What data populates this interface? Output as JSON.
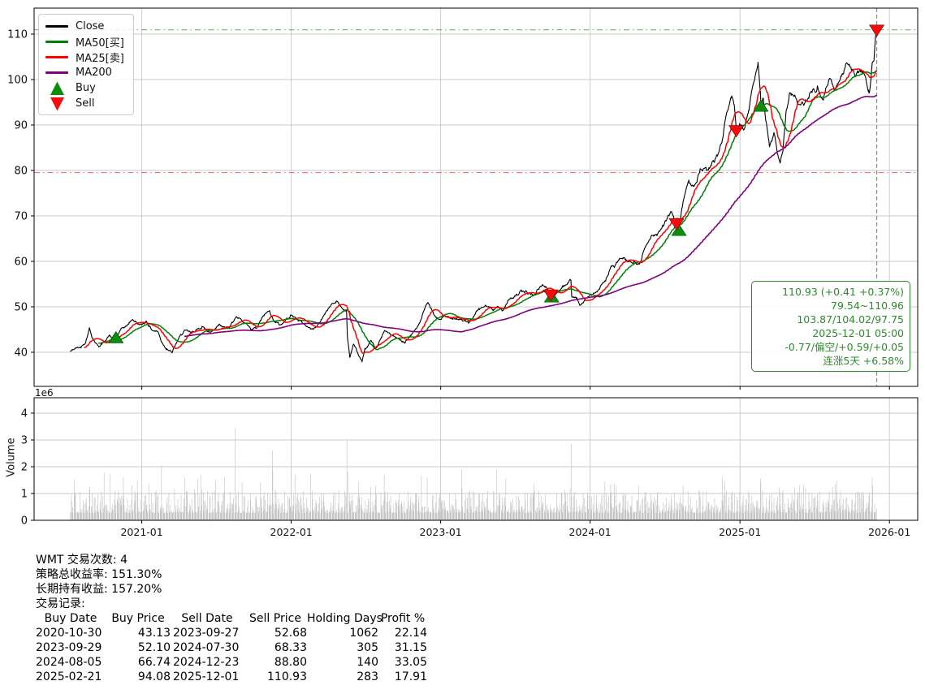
{
  "chart_data": {
    "type": "line",
    "symbol": "WMT",
    "title": "",
    "x_ticks": [
      "2021-01",
      "2022-01",
      "2023-01",
      "2024-01",
      "2025-01",
      "2026-01"
    ],
    "x_range": [
      "2020-04-13",
      "2026-03-11"
    ],
    "price_axis": {
      "ticks": [
        40,
        50,
        60,
        70,
        80,
        90,
        100,
        110
      ],
      "ylim": [
        32.5,
        115.714
      ],
      "grid": true
    },
    "volume_axis": {
      "ticks": [
        0,
        1,
        2,
        3,
        4
      ],
      "ylim_millions": [
        0,
        4.576
      ],
      "offset_label": "1e6",
      "ylabel": "Volume",
      "grid": true
    },
    "series": [
      {
        "name": "Close",
        "color": "#000000",
        "width": 1.1,
        "keypoints": [
          [
            "2020-07-10",
            40.2
          ],
          [
            "2020-07-24",
            40.9
          ],
          [
            "2020-08-06",
            41.1
          ],
          [
            "2020-08-18",
            42.6
          ],
          [
            "2020-08-26",
            45.4
          ],
          [
            "2020-09-03",
            43.1
          ],
          [
            "2020-09-11",
            42.0
          ],
          [
            "2020-09-21",
            41.3
          ],
          [
            "2020-10-02",
            42.4
          ],
          [
            "2020-10-14",
            43.8
          ],
          [
            "2020-10-23",
            42.9
          ],
          [
            "2020-10-30",
            43.13
          ],
          [
            "2020-11-10",
            44.9
          ],
          [
            "2020-11-24",
            45.8
          ],
          [
            "2020-12-09",
            47.2
          ],
          [
            "2020-12-21",
            46.4
          ],
          [
            "2020-12-31",
            46.1
          ],
          [
            "2021-01-12",
            46.9
          ],
          [
            "2021-01-26",
            44.9
          ],
          [
            "2021-02-09",
            44.6
          ],
          [
            "2021-02-19",
            42.2
          ],
          [
            "2021-03-03",
            40.8
          ],
          [
            "2021-03-16",
            39.9
          ],
          [
            "2021-03-31",
            42.9
          ],
          [
            "2021-04-15",
            44.8
          ],
          [
            "2021-04-30",
            44.3
          ],
          [
            "2021-05-17",
            45.1
          ],
          [
            "2021-05-28",
            45.7
          ],
          [
            "2021-06-11",
            44.5
          ],
          [
            "2021-06-25",
            44.9
          ],
          [
            "2021-07-09",
            46.2
          ],
          [
            "2021-07-23",
            45.3
          ],
          [
            "2021-08-06",
            46.0
          ],
          [
            "2021-08-18",
            47.6
          ],
          [
            "2021-09-03",
            46.8
          ],
          [
            "2021-09-24",
            45.0
          ],
          [
            "2021-10-08",
            45.3
          ],
          [
            "2021-10-26",
            48.0
          ],
          [
            "2021-11-09",
            49.2
          ],
          [
            "2021-11-17",
            47.4
          ],
          [
            "2021-12-03",
            46.0
          ],
          [
            "2021-12-16",
            46.7
          ],
          [
            "2021-12-30",
            48.2
          ],
          [
            "2022-01-14",
            47.4
          ],
          [
            "2022-02-01",
            46.3
          ],
          [
            "2022-02-18",
            45.1
          ],
          [
            "2022-03-04",
            45.6
          ],
          [
            "2022-03-25",
            48.6
          ],
          [
            "2022-04-08",
            50.4
          ],
          [
            "2022-04-21",
            51.3
          ],
          [
            "2022-05-06",
            49.6
          ],
          [
            "2022-05-16",
            49.2
          ],
          [
            "2022-05-18",
            43.6
          ],
          [
            "2022-05-24",
            38.9
          ],
          [
            "2022-06-02",
            41.8
          ],
          [
            "2022-06-13",
            39.7
          ],
          [
            "2022-06-23",
            37.9
          ],
          [
            "2022-07-01",
            40.7
          ],
          [
            "2022-07-15",
            42.6
          ],
          [
            "2022-07-26",
            40.9
          ],
          [
            "2022-08-08",
            43.0
          ],
          [
            "2022-08-17",
            44.8
          ],
          [
            "2022-09-06",
            43.6
          ],
          [
            "2022-09-23",
            42.7
          ],
          [
            "2022-10-07",
            42.4
          ],
          [
            "2022-10-25",
            44.3
          ],
          [
            "2022-11-10",
            46.3
          ],
          [
            "2022-11-30",
            50.9
          ],
          [
            "2022-12-15",
            48.3
          ],
          [
            "2022-12-28",
            47.2
          ],
          [
            "2023-01-12",
            47.9
          ],
          [
            "2023-01-31",
            47.6
          ],
          [
            "2023-02-21",
            47.3
          ],
          [
            "2023-03-10",
            46.4
          ],
          [
            "2023-03-31",
            49.1
          ],
          [
            "2023-04-21",
            50.3
          ],
          [
            "2023-05-10",
            49.4
          ],
          [
            "2023-05-19",
            50.1
          ],
          [
            "2023-06-02",
            49.2
          ],
          [
            "2023-06-16",
            51.6
          ],
          [
            "2023-06-30",
            52.4
          ],
          [
            "2023-07-18",
            53.3
          ],
          [
            "2023-07-31",
            53.2
          ],
          [
            "2023-08-16",
            52.5
          ],
          [
            "2023-08-31",
            54.3
          ],
          [
            "2023-09-14",
            54.5
          ],
          [
            "2023-09-21",
            53.6
          ],
          [
            "2023-09-27",
            52.68
          ],
          [
            "2023-09-29",
            52.1
          ],
          [
            "2023-10-13",
            53.2
          ],
          [
            "2023-10-27",
            54.4
          ],
          [
            "2023-11-08",
            55.2
          ],
          [
            "2023-11-15",
            55.9
          ],
          [
            "2023-11-17",
            52.2
          ],
          [
            "2023-11-30",
            51.8
          ],
          [
            "2023-12-08",
            50.4
          ],
          [
            "2023-12-20",
            51.9
          ],
          [
            "2024-01-05",
            52.5
          ],
          [
            "2024-01-24",
            53.9
          ],
          [
            "2024-02-09",
            56.2
          ],
          [
            "2024-02-20",
            58.7
          ],
          [
            "2024-03-01",
            58.9
          ],
          [
            "2024-03-14",
            60.6
          ],
          [
            "2024-03-28",
            60.2
          ],
          [
            "2024-04-12",
            59.7
          ],
          [
            "2024-04-30",
            59.4
          ],
          [
            "2024-05-15",
            63.2
          ],
          [
            "2024-05-31",
            65.7
          ],
          [
            "2024-06-14",
            66.1
          ],
          [
            "2024-06-28",
            67.7
          ],
          [
            "2024-07-08",
            69.7
          ],
          [
            "2024-07-16",
            71.0
          ],
          [
            "2024-07-24",
            69.0
          ],
          [
            "2024-07-30",
            68.33
          ],
          [
            "2024-08-05",
            66.74
          ],
          [
            "2024-08-15",
            73.1
          ],
          [
            "2024-08-30",
            77.2
          ],
          [
            "2024-09-12",
            76.8
          ],
          [
            "2024-09-27",
            80.3
          ],
          [
            "2024-10-11",
            80.0
          ],
          [
            "2024-10-31",
            81.9
          ],
          [
            "2024-11-12",
            84.7
          ],
          [
            "2024-11-19",
            86.8
          ],
          [
            "2024-11-29",
            92.6
          ],
          [
            "2024-12-12",
            96.4
          ],
          [
            "2024-12-18",
            94.5
          ],
          [
            "2024-12-23",
            88.8
          ],
          [
            "2024-12-31",
            90.3
          ],
          [
            "2025-01-02",
            90.0
          ],
          [
            "2025-01-13",
            89.4
          ],
          [
            "2025-01-23",
            93.2
          ],
          [
            "2025-01-31",
            98.1
          ],
          [
            "2025-02-07",
            100.7
          ],
          [
            "2025-02-14",
            103.8
          ],
          [
            "2025-02-20",
            97.2
          ],
          [
            "2025-02-21",
            94.08
          ],
          [
            "2025-02-27",
            95.9
          ],
          [
            "2025-03-07",
            90.1
          ],
          [
            "2025-03-14",
            85.2
          ],
          [
            "2025-03-26",
            87.9
          ],
          [
            "2025-04-04",
            83.2
          ],
          [
            "2025-04-09",
            81.6
          ],
          [
            "2025-04-16",
            84.3
          ],
          [
            "2025-04-24",
            93.3
          ],
          [
            "2025-05-02",
            97.1
          ],
          [
            "2025-05-16",
            96.2
          ],
          [
            "2025-05-29",
            94.4
          ],
          [
            "2025-06-10",
            95.6
          ],
          [
            "2025-06-24",
            97.4
          ],
          [
            "2025-07-09",
            98.6
          ],
          [
            "2025-07-22",
            95.6
          ],
          [
            "2025-08-07",
            100.1
          ],
          [
            "2025-08-21",
            97.6
          ],
          [
            "2025-09-05",
            100.6
          ],
          [
            "2025-09-16",
            103.4
          ],
          [
            "2025-09-30",
            102.1
          ],
          [
            "2025-10-10",
            100.7
          ],
          [
            "2025-10-24",
            102.2
          ],
          [
            "2025-11-04",
            100.4
          ],
          [
            "2025-11-13",
            97.1
          ],
          [
            "2025-11-20",
            103.6
          ],
          [
            "2025-11-24",
            104.1
          ],
          [
            "2025-11-26",
            107.0
          ],
          [
            "2025-11-28",
            109.5
          ],
          [
            "2025-12-01",
            110.93
          ]
        ]
      },
      {
        "name": "MA50[买]",
        "color": "#008000",
        "width": 1.5,
        "derived": "moving_average",
        "window": 50
      },
      {
        "name": "MA25[卖]",
        "color": "#ff0000",
        "width": 1.5,
        "derived": "moving_average",
        "window": 25
      },
      {
        "name": "MA200",
        "color": "#800080",
        "width": 1.6,
        "derived": "moving_average",
        "window": 200
      }
    ],
    "markers": {
      "buy": {
        "color": "#0a8f0a",
        "edge": "#064006",
        "points": [
          [
            "2020-10-30",
            43.13
          ],
          [
            "2023-09-29",
            52.1
          ],
          [
            "2024-08-05",
            66.74
          ],
          [
            "2025-02-21",
            94.08
          ]
        ]
      },
      "sell": {
        "color": "#f20c0c",
        "edge": "#7a0606",
        "points": [
          [
            "2023-09-27",
            52.68
          ],
          [
            "2024-07-30",
            68.33
          ],
          [
            "2024-12-23",
            88.8
          ],
          [
            "2025-12-01",
            110.93
          ]
        ]
      }
    },
    "reference_lines": {
      "range_high": {
        "value": 110.96,
        "color": "#4daf4a",
        "style": "dashdot"
      },
      "range_low": {
        "value": 79.54,
        "color": "#e9594c",
        "style": "dashdot"
      },
      "last_date_vline": {
        "date": "2025-12-01",
        "color": "#44a044",
        "style": "dashed"
      }
    },
    "volume_bars": {
      "color": "#c5c5c5",
      "typical_range_millions": [
        0.25,
        1.3
      ],
      "spikes_millions": [
        [
          "2020-08-27",
          1.25
        ],
        [
          "2020-11-17",
          1.6
        ],
        [
          "2021-02-18",
          2.05
        ],
        [
          "2021-05-18",
          1.55
        ],
        [
          "2021-08-17",
          3.45
        ],
        [
          "2021-11-16",
          2.6
        ],
        [
          "2021-11-17",
          1.9
        ],
        [
          "2022-02-17",
          1.75
        ],
        [
          "2022-05-17",
          3.0
        ],
        [
          "2022-05-19",
          1.8
        ],
        [
          "2022-07-26",
          1.3
        ],
        [
          "2022-08-16",
          1.7
        ],
        [
          "2022-11-15",
          1.65
        ],
        [
          "2023-02-21",
          1.9
        ],
        [
          "2023-05-18",
          1.88
        ],
        [
          "2023-08-17",
          1.35
        ],
        [
          "2023-11-16",
          2.85
        ],
        [
          "2024-02-20",
          1.35
        ],
        [
          "2024-05-16",
          1.05
        ],
        [
          "2024-08-15",
          1.3
        ],
        [
          "2024-11-19",
          1.6
        ],
        [
          "2025-02-20",
          1.55
        ],
        [
          "2025-02-21",
          1.4
        ],
        [
          "2025-05-15",
          1.2
        ],
        [
          "2025-08-21",
          1.35
        ],
        [
          "2025-11-20",
          1.6
        ],
        [
          "2025-11-21",
          1.3
        ]
      ]
    },
    "grid_color": "#c9c9c9",
    "date_range": [
      "2020-07-10",
      "2025-12-01"
    ]
  },
  "legend": {
    "items": [
      {
        "label": "Close",
        "color": "#000000",
        "marker": "line"
      },
      {
        "label": "MA50[买]",
        "color": "#008000",
        "marker": "line"
      },
      {
        "label": "MA25[卖]",
        "color": "#ff0000",
        "marker": "line"
      },
      {
        "label": "MA200",
        "color": "#800080",
        "marker": "line"
      },
      {
        "label": "Buy",
        "color": "#0a8f0a",
        "marker": "triangle-up"
      },
      {
        "label": "Sell",
        "color": "#f20c0c",
        "marker": "triangle-down"
      }
    ]
  },
  "info_box": {
    "color": "#2e8b2e",
    "lines": [
      "110.93 (+0.41 +0.37%)",
      "79.54~110.96",
      "103.87/104.02/97.75",
      "2025-12-01 05:00",
      "-0.77/偏空/+0.59/+0.05",
      "连涨5天 +6.58%"
    ]
  },
  "summary": {
    "trade_count_line": "WMT 交易次数: 4",
    "strategy_return_line": "策略总收益率: 151.30%",
    "hold_return_line": "长期持有收益: 157.20%",
    "records_label": "交易记录:"
  },
  "trades": {
    "headers": [
      "Buy Date",
      "Buy Price",
      "Sell Date",
      "Sell Price",
      "Holding Days",
      "Profit %"
    ],
    "rows": [
      [
        "2020-10-30",
        "43.13",
        "2023-09-27",
        "52.68",
        "1062",
        "22.14"
      ],
      [
        "2023-09-29",
        "52.10",
        "2024-07-30",
        "68.33",
        "305",
        "31.15"
      ],
      [
        "2024-08-05",
        "66.74",
        "2024-12-23",
        "88.80",
        "140",
        "33.05"
      ],
      [
        "2025-02-21",
        "94.08",
        "2025-12-01",
        "110.93",
        "283",
        "17.91"
      ]
    ]
  }
}
